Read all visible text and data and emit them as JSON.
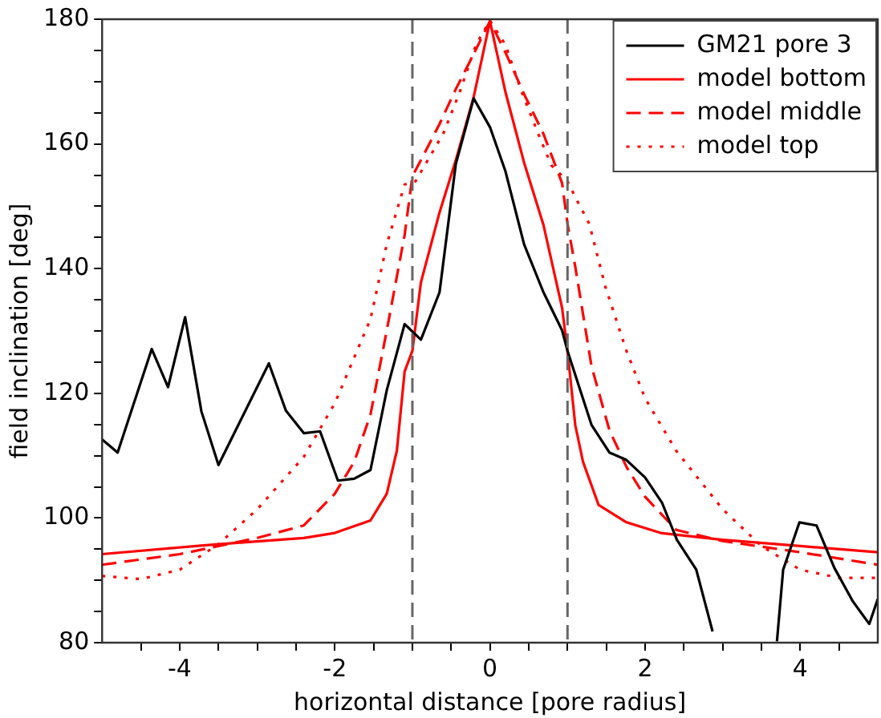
{
  "chart_data": {
    "type": "line",
    "xlabel": "horizontal distance [pore radius]",
    "ylabel": "field inclination [deg]",
    "xlim": [
      -5,
      5
    ],
    "ylim": [
      80,
      180
    ],
    "xticks": [
      {
        "value": -4.5,
        "label": null
      },
      -4,
      {
        "value": -3.5,
        "label": null
      },
      {
        "value": -3,
        "label": null
      },
      {
        "value": -2.5,
        "label": null
      },
      -2,
      {
        "value": -1.5,
        "label": null
      },
      {
        "value": -1,
        "label": null
      },
      {
        "value": -0.5,
        "label": null
      },
      0,
      {
        "value": 0.5,
        "label": null
      },
      {
        "value": 1,
        "label": null
      },
      {
        "value": 1.5,
        "label": null
      },
      2,
      {
        "value": 2.5,
        "label": null
      },
      {
        "value": 3,
        "label": null
      },
      {
        "value": 3.5,
        "label": null
      },
      4,
      {
        "value": 4.5,
        "label": null
      }
    ],
    "yticks": [
      80,
      {
        "value": 85,
        "label": null
      },
      {
        "value": 90,
        "label": null
      },
      {
        "value": 95,
        "label": null
      },
      100,
      {
        "value": 105,
        "label": null
      },
      {
        "value": 110,
        "label": null
      },
      {
        "value": 115,
        "label": null
      },
      120,
      {
        "value": 125,
        "label": null
      },
      {
        "value": 130,
        "label": null
      },
      {
        "value": 135,
        "label": null
      },
      140,
      {
        "value": 145,
        "label": null
      },
      {
        "value": 150,
        "label": null
      },
      {
        "value": 155,
        "label": null
      },
      160,
      {
        "value": 165,
        "label": null
      },
      {
        "value": 170,
        "label": null
      },
      {
        "value": 175,
        "label": null
      },
      180
    ],
    "grid": false,
    "legend": "top right",
    "marker": "none",
    "ref_lines": [
      {
        "axis": "x",
        "value": -1,
        "color": "#666666",
        "line_style": "dashed"
      },
      {
        "axis": "x",
        "value": 1,
        "color": "#666666",
        "line_style": "dashed"
      }
    ],
    "series": [
      {
        "name": "GM21 pore 3",
        "color": "#000000",
        "line_style": "solid",
        "x": [
          -5,
          -4.8,
          -4.36,
          -4.15,
          -3.93,
          -3.72,
          -3.5,
          -2.85,
          -2.63,
          -2.4,
          -2.19,
          -1.96,
          -1.75,
          -1.54,
          -1.33,
          -1.1,
          -0.89,
          -0.65,
          -0.44,
          -0.21,
          0,
          0.2,
          0.44,
          0.69,
          0.93,
          1.0,
          1.31,
          1.54,
          1.76,
          2.0,
          2.22,
          2.41,
          2.66,
          2.87,
          3.3,
          3.7,
          3.78,
          3.99,
          4.21,
          4.44,
          4.68,
          4.89,
          5
        ],
        "values": [
          112.6,
          110.5,
          127.1,
          121,
          132.2,
          117.1,
          108.5,
          124.8,
          117.2,
          113.6,
          113.9,
          106,
          106.3,
          107.7,
          120.5,
          131.1,
          128.6,
          136.2,
          156.8,
          167.3,
          162.7,
          155.6,
          143.9,
          136.2,
          130.1,
          126.8,
          114.9,
          110.5,
          109.3,
          106.5,
          102.4,
          96.5,
          91.7,
          81.8,
          null,
          80.2,
          91.7,
          99.3,
          98.8,
          92,
          86.6,
          83,
          87
        ]
      },
      {
        "name": "model bottom",
        "color": "#ff0000",
        "line_style": "solid",
        "x": [
          -5,
          -3.5,
          -2.4,
          -2,
          -1.54,
          -1.33,
          -1.2,
          -1.1,
          -1,
          -0.89,
          -0.65,
          -0.44,
          -0.21,
          0,
          0.2,
          0.44,
          0.69,
          0.93,
          1.0,
          1.1,
          1.2,
          1.4,
          1.76,
          2.2,
          3,
          4,
          5
        ],
        "values": [
          94.2,
          95.8,
          96.8,
          97.6,
          99.6,
          103.9,
          110.8,
          123.5,
          126.8,
          137.8,
          149,
          157.4,
          167.5,
          179.7,
          168.3,
          157,
          147,
          133.7,
          126.8,
          114.9,
          109,
          102.1,
          99.3,
          97.6,
          96.5,
          95.5,
          94.5
        ]
      },
      {
        "name": "model middle",
        "color": "#ff0000",
        "line_style": "dashed",
        "x": [
          -5,
          -4,
          -3,
          -2.4,
          -2,
          -1.75,
          -1.54,
          -1.33,
          -1.1,
          -1,
          -0.89,
          -0.65,
          -0.44,
          -0.21,
          0,
          0.21,
          0.44,
          0.69,
          0.93,
          1,
          1.1,
          1.31,
          1.54,
          1.76,
          2,
          2.4,
          3,
          4,
          5
        ],
        "values": [
          92.5,
          94.2,
          96.8,
          98.8,
          103.9,
          109,
          116.6,
          130.1,
          145.4,
          154.8,
          157.4,
          163.2,
          168.8,
          174.4,
          179.7,
          174.4,
          168,
          161.6,
          153.7,
          147.2,
          140.3,
          124.3,
          114.1,
          108.2,
          103.4,
          98.1,
          96.3,
          94.5,
          92.5
        ]
      },
      {
        "name": "model top",
        "color": "#ff0000",
        "line_style": "dotted",
        "x": [
          -5,
          -4.5,
          -4,
          -3.5,
          -3,
          -2.4,
          -2,
          -1.54,
          -1.33,
          -1.1,
          -0.96,
          -0.6,
          -0.39,
          -0.18,
          0,
          0.2,
          0.41,
          0.62,
          0.79,
          1,
          1.14,
          1.28,
          1.49,
          1.76,
          2,
          2.4,
          3,
          3.5,
          4,
          4.5,
          5
        ],
        "values": [
          90.7,
          90.2,
          91.7,
          95.8,
          101.4,
          109.8,
          118.4,
          131.9,
          143.9,
          153.5,
          154,
          161.7,
          168.3,
          175.9,
          179.8,
          175.9,
          168.3,
          161.7,
          156.6,
          154,
          150.5,
          147.2,
          137,
          126.8,
          119.2,
          110.8,
          101.4,
          95.5,
          91.7,
          90.4,
          90.4
        ]
      }
    ]
  }
}
